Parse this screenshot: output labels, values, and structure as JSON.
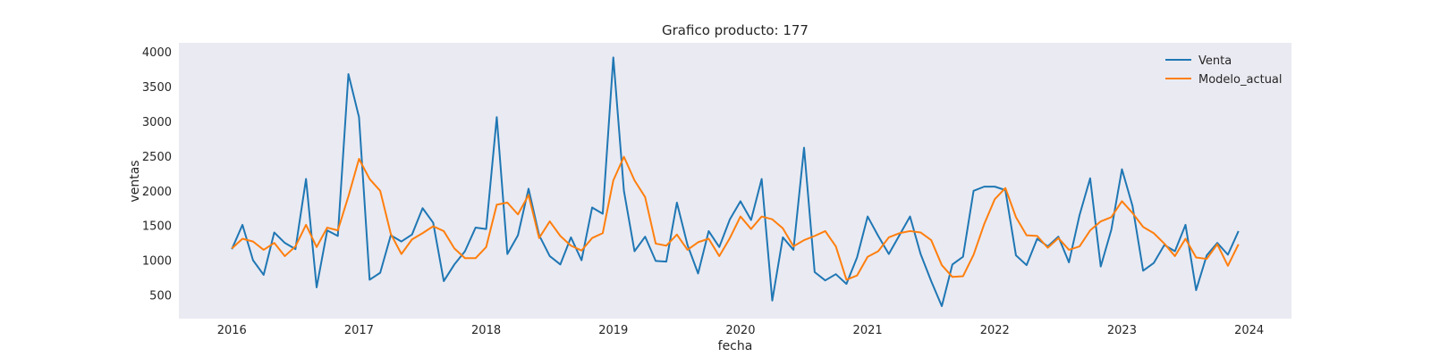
{
  "chart_data": {
    "type": "line",
    "title": "Grafico producto: 177",
    "xlabel": "fecha",
    "ylabel": "ventas",
    "x_start": "2016-01",
    "x_frequency": "monthly",
    "x_ticks": [
      "2016",
      "2017",
      "2018",
      "2019",
      "2020",
      "2021",
      "2022",
      "2023",
      "2024"
    ],
    "y_ticks": [
      500,
      1000,
      1500,
      2000,
      2500,
      3000,
      3500,
      4000
    ],
    "xlim": [
      "2015-08",
      "2024-05"
    ],
    "ylim": [
      160,
      4130
    ],
    "grid": false,
    "legend_position": "top-right",
    "series": [
      {
        "name": "Venta",
        "color": "#1f77b4",
        "values": [
          1160,
          1510,
          1000,
          790,
          1400,
          1250,
          1160,
          2170,
          610,
          1430,
          1350,
          3680,
          3060,
          720,
          820,
          1360,
          1270,
          1370,
          1750,
          1540,
          700,
          940,
          1130,
          1470,
          1450,
          3060,
          1090,
          1360,
          2030,
          1360,
          1060,
          940,
          1330,
          1000,
          1760,
          1670,
          3920,
          2000,
          1130,
          1340,
          990,
          980,
          1830,
          1220,
          810,
          1420,
          1190,
          1590,
          1850,
          1580,
          2170,
          420,
          1330,
          1150,
          2620,
          830,
          710,
          800,
          660,
          1040,
          1630,
          1350,
          1090,
          1360,
          1630,
          1090,
          700,
          340,
          940,
          1050,
          2000,
          2060,
          2060,
          2010,
          1070,
          930,
          1310,
          1200,
          1340,
          970,
          1650,
          2180,
          910,
          1440,
          2310,
          1780,
          850,
          960,
          1220,
          1130,
          1510,
          570,
          1070,
          1250,
          1080,
          1420
        ]
      },
      {
        "name": "Modelo_actual",
        "color": "#ff7f0e",
        "values": [
          1170,
          1310,
          1270,
          1150,
          1250,
          1060,
          1200,
          1510,
          1190,
          1470,
          1430,
          1920,
          2460,
          2170,
          2000,
          1380,
          1090,
          1300,
          1390,
          1490,
          1420,
          1170,
          1030,
          1030,
          1190,
          1800,
          1830,
          1660,
          1940,
          1320,
          1560,
          1350,
          1210,
          1140,
          1320,
          1390,
          2150,
          2490,
          2150,
          1910,
          1240,
          1210,
          1370,
          1150,
          1260,
          1310,
          1060,
          1320,
          1630,
          1450,
          1630,
          1590,
          1460,
          1200,
          1290,
          1350,
          1420,
          1200,
          720,
          780,
          1050,
          1130,
          1330,
          1390,
          1420,
          1400,
          1290,
          930,
          760,
          770,
          1080,
          1520,
          1880,
          2040,
          1620,
          1360,
          1350,
          1180,
          1320,
          1150,
          1200,
          1430,
          1560,
          1620,
          1850,
          1680,
          1480,
          1390,
          1240,
          1060,
          1310,
          1040,
          1020,
          1230,
          920,
          1230
        ]
      }
    ]
  }
}
